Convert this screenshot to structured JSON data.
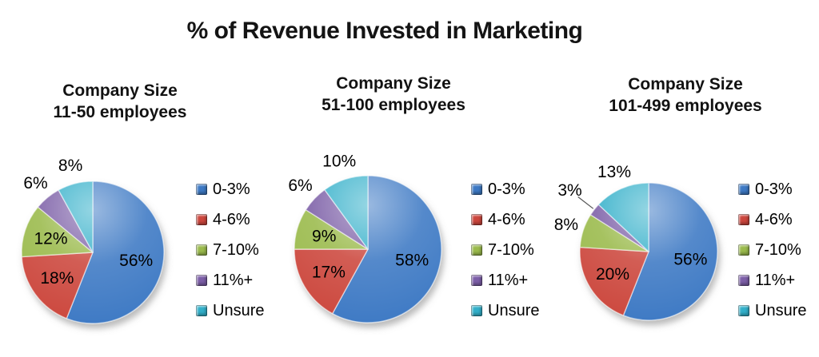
{
  "title": "% of Revenue Invested in Marketing",
  "palette": {
    "0-3%": "#3D79C4",
    "4-6%": "#CC463D",
    "7-10%": "#9ABA4C",
    "11%+": "#7C5EA7",
    "Unsure": "#32AFC9"
  },
  "chart_data": [
    {
      "type": "pie",
      "subtitle_line1": "Company Size",
      "subtitle_line2": "11-50 employees",
      "categories": [
        "0-3%",
        "4-6%",
        "7-10%",
        "11%+",
        "Unsure"
      ],
      "values": [
        56,
        18,
        12,
        6,
        8
      ],
      "data_labels": [
        "56%",
        "18%",
        "12%",
        "6%",
        "8%"
      ],
      "label_placement": [
        "inside",
        "inside",
        "inside",
        "outside",
        "outside"
      ],
      "colors": [
        "#3D79C4",
        "#CC463D",
        "#9ABA4C",
        "#7C5EA7",
        "#32AFC9"
      ],
      "start_angle": 0,
      "direction": "clockwise",
      "legend_position": "right",
      "legend_labels": [
        "0-3%",
        "4-6%",
        "7-10%",
        "11%+",
        "Unsure"
      ]
    },
    {
      "type": "pie",
      "subtitle_line1": "Company Size",
      "subtitle_line2": "51-100 employees",
      "categories": [
        "0-3%",
        "4-6%",
        "7-10%",
        "11%+",
        "Unsure"
      ],
      "values": [
        58,
        17,
        9,
        6,
        10
      ],
      "data_labels": [
        "58%",
        "17%",
        "9%",
        "6%",
        "10%"
      ],
      "label_placement": [
        "inside",
        "inside",
        "inside",
        "outside",
        "outside"
      ],
      "colors": [
        "#3D79C4",
        "#CC463D",
        "#9ABA4C",
        "#7C5EA7",
        "#32AFC9"
      ],
      "start_angle": 0,
      "direction": "clockwise",
      "legend_position": "right",
      "legend_labels": [
        "0-3%",
        "4-6%",
        "7-10%",
        "11%+",
        "Unsure"
      ]
    },
    {
      "type": "pie",
      "subtitle_line1": "Company Size",
      "subtitle_line2": "101-499 employees",
      "categories": [
        "0-3%",
        "4-6%",
        "7-10%",
        "11%+",
        "Unsure"
      ],
      "values": [
        56,
        20,
        8,
        3,
        13
      ],
      "data_labels": [
        "56%",
        "20%",
        "8%",
        "3%",
        "13%"
      ],
      "label_placement": [
        "inside",
        "inside",
        "outside",
        "leader",
        "outside"
      ],
      "colors": [
        "#3D79C4",
        "#CC463D",
        "#9ABA4C",
        "#7C5EA7",
        "#32AFC9"
      ],
      "start_angle": 0,
      "direction": "clockwise",
      "legend_position": "right",
      "legend_labels": [
        "0-3%",
        "4-6%",
        "7-10%",
        "11%+",
        "Unsure"
      ]
    }
  ]
}
